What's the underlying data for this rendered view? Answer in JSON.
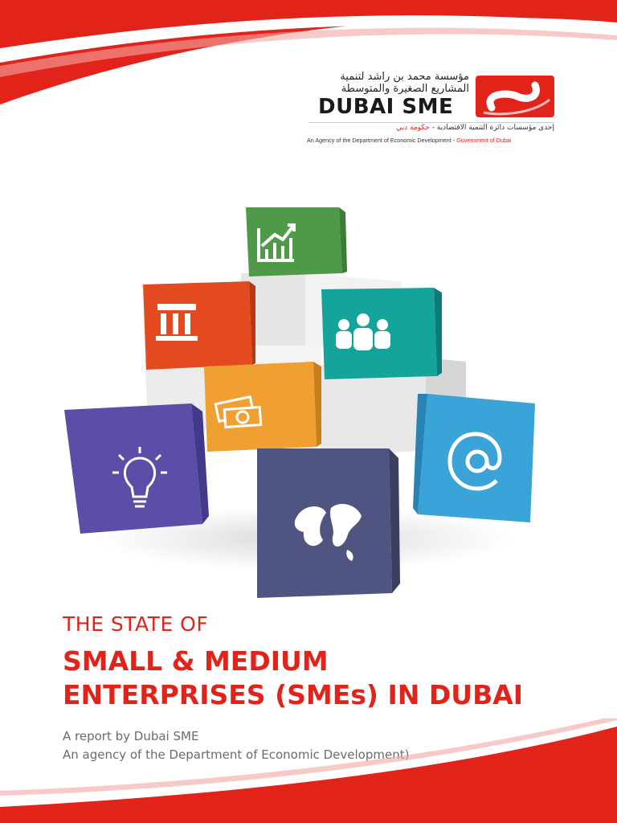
{
  "logo": {
    "arabic_title": "مؤسسة محمد بن راشد لتنمية المشاريع الصغيرة والمتوسطة",
    "name": "DUBAI SME",
    "arabic_agency": "إحدى مؤسسات دائرة التنمية الاقتصادية - ",
    "arabic_gov": "حكومة دبي",
    "agency_text": "An Agency of the Department of Economic Development - ",
    "gov_text": "Government of Dubai"
  },
  "title": {
    "pre": "THE STATE OF",
    "line1": "SMALL & MEDIUM",
    "line2": "ENTERPRISES (SMEs) IN DUBAI"
  },
  "subtitle": {
    "line1": "A report by Dubai SME",
    "line2": "An agency of the Department of Economic Development)"
  },
  "colors": {
    "brand_red": "#e2231a",
    "cube_green": "#4e9a48",
    "cube_red": "#e34a1f",
    "cube_teal": "#14a49c",
    "cube_orange": "#f0a030",
    "cube_purple": "#5b4ea8",
    "cube_navy": "#4f5580",
    "cube_blue": "#3aa3d8"
  },
  "icons": [
    "chart-icon",
    "bank-icon",
    "people-icon",
    "money-icon",
    "lightbulb-icon",
    "globe-icon",
    "at-icon"
  ]
}
